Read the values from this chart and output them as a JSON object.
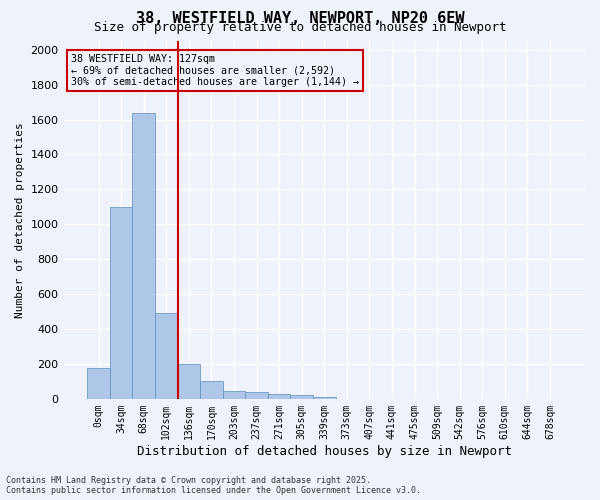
{
  "title_line1": "38, WESTFIELD WAY, NEWPORT, NP20 6EW",
  "title_line2": "Size of property relative to detached houses in Newport",
  "xlabel": "Distribution of detached houses by size in Newport",
  "ylabel": "Number of detached properties",
  "bar_values": [
    175,
    1100,
    1640,
    490,
    200,
    105,
    45,
    40,
    25,
    20,
    10,
    0,
    0,
    0,
    0,
    0,
    0,
    0,
    0,
    0,
    0
  ],
  "bar_labels": [
    "0sqm",
    "34sqm",
    "68sqm",
    "102sqm",
    "136sqm",
    "170sqm",
    "203sqm",
    "237sqm",
    "271sqm",
    "305sqm",
    "339sqm",
    "373sqm",
    "407sqm",
    "441sqm",
    "475sqm",
    "509sqm",
    "542sqm",
    "576sqm",
    "610sqm",
    "644sqm",
    "678sqm"
  ],
  "bar_color": "#aec6e8",
  "bar_edgecolor": "#5a8fc0",
  "ylim": [
    0,
    2050
  ],
  "yticks": [
    0,
    200,
    400,
    600,
    800,
    1000,
    1200,
    1400,
    1600,
    1800,
    2000
  ],
  "vline_x": 3.5,
  "vline_color": "#cc0000",
  "annotation_title": "38 WESTFIELD WAY: 127sqm",
  "annotation_line1": "← 69% of detached houses are smaller (2,592)",
  "annotation_line2": "30% of semi-detached houses are larger (1,144) →",
  "annotation_box_color": "#cc0000",
  "background_color": "#eef2fb",
  "grid_color": "#ffffff",
  "footnote1": "Contains HM Land Registry data © Crown copyright and database right 2025.",
  "footnote2": "Contains public sector information licensed under the Open Government Licence v3.0."
}
